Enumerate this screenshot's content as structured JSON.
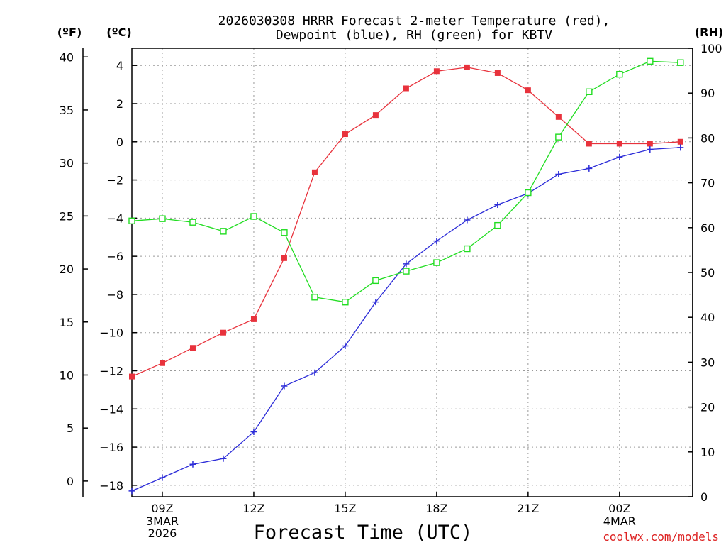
{
  "chart_data": {
    "type": "line",
    "title": [
      "2026030308 HRRR Forecast 2-meter Temperature (red),",
      "Dewpoint (blue), RH (green) for KBTV"
    ],
    "xlabel": "Forecast Time (UTC)",
    "units": {
      "fahrenheit": "(ºF)",
      "celsius": "(ºC)",
      "rh": "(RH)"
    },
    "x_hours": [
      8,
      9,
      10,
      11,
      12,
      13,
      14,
      15,
      16,
      17,
      18,
      19,
      20,
      21,
      22,
      23,
      24,
      25,
      26
    ],
    "xlim": [
      8,
      26.4
    ],
    "x_ticks": [
      {
        "hour": 9,
        "label": "09Z",
        "sub": [
          "3MAR",
          "2026"
        ]
      },
      {
        "hour": 12,
        "label": "12Z",
        "sub": []
      },
      {
        "hour": 15,
        "label": "15Z",
        "sub": []
      },
      {
        "hour": 18,
        "label": "18Z",
        "sub": []
      },
      {
        "hour": 21,
        "label": "21Z",
        "sub": []
      },
      {
        "hour": 24,
        "label": "00Z",
        "sub": [
          "4MAR"
        ]
      }
    ],
    "y_celsius": {
      "lim": [
        -18.6,
        4.9
      ],
      "ticks": [
        4,
        2,
        0,
        -2,
        -4,
        -6,
        -8,
        -10,
        -12,
        -14,
        -16,
        -18
      ],
      "tick_labels": [
        "4",
        "2",
        "0",
        "−2",
        "−4",
        "−6",
        "−8",
        "−10",
        "−12",
        "−14",
        "−16",
        "−18"
      ]
    },
    "y_fahrenheit": {
      "ticks": [
        40,
        35,
        30,
        25,
        20,
        15,
        10,
        5,
        0
      ],
      "tick_labels": [
        "40",
        "35",
        "30",
        "25",
        "20",
        "15",
        "10",
        "5",
        "0"
      ]
    },
    "y_rh": {
      "lim": [
        0,
        100
      ],
      "ticks": [
        100,
        90,
        80,
        70,
        60,
        50,
        40,
        30,
        20,
        10,
        0
      ],
      "tick_labels": [
        "100",
        "90",
        "80",
        "70",
        "60",
        "50",
        "40",
        "30",
        "20",
        "10",
        "0"
      ]
    },
    "series": [
      {
        "name": "Temperature",
        "color": "#e8323c",
        "axis": "celsius",
        "marker": "filled-square",
        "values": [
          -12.3,
          -11.6,
          -10.8,
          -10.0,
          -9.3,
          -6.1,
          -1.6,
          0.4,
          1.4,
          2.8,
          3.7,
          3.9,
          3.6,
          2.7,
          1.3,
          -0.1,
          -0.1,
          -0.1,
          0.0
        ]
      },
      {
        "name": "Dewpoint",
        "color": "#2c2cd8",
        "axis": "celsius",
        "marker": "plus",
        "values": [
          -18.3,
          -17.6,
          -16.9,
          -16.6,
          -15.2,
          -12.8,
          -12.1,
          -10.7,
          -8.4,
          -6.4,
          -5.2,
          -4.1,
          -3.3,
          -2.7,
          -1.7,
          -1.4,
          -0.8,
          -0.4,
          -0.3
        ]
      },
      {
        "name": "RH",
        "color": "#22dd22",
        "axis": "rh",
        "marker": "open-square",
        "values": [
          61.5,
          62,
          61.2,
          59.2,
          62.5,
          58.9,
          44.5,
          43.4,
          48.2,
          50.3,
          52.2,
          55.3,
          60.5,
          67.8,
          80.2,
          90.3,
          94.2,
          97.1,
          96.8
        ]
      }
    ]
  },
  "credit": "coolwx.com/models"
}
